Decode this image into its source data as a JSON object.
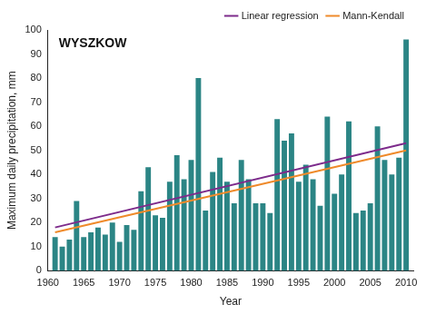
{
  "chart_data": {
    "type": "bar",
    "title": "WYSZKOW",
    "x_label": "Year",
    "y_label": "Maximum daily precipitation, mm",
    "x": [
      1961,
      1962,
      1963,
      1964,
      1965,
      1966,
      1967,
      1968,
      1969,
      1970,
      1971,
      1972,
      1973,
      1974,
      1975,
      1976,
      1977,
      1978,
      1979,
      1980,
      1981,
      1982,
      1983,
      1984,
      1985,
      1986,
      1987,
      1988,
      1989,
      1990,
      1991,
      1992,
      1993,
      1994,
      1995,
      1996,
      1997,
      1998,
      1999,
      2000,
      2001,
      2002,
      2003,
      2004,
      2005,
      2006,
      2007,
      2008,
      2009,
      2010
    ],
    "series": [
      {
        "type": "bar",
        "color": "#2b8585",
        "values": [
          14,
          10,
          13,
          29,
          14,
          16,
          18,
          15,
          20,
          12,
          19,
          17,
          33,
          43,
          23,
          22,
          37,
          48,
          38,
          46,
          80,
          25,
          41,
          47,
          37,
          28,
          46,
          38,
          28,
          28,
          24,
          63,
          54,
          57,
          37,
          44,
          38,
          27,
          64,
          32,
          40,
          62,
          24,
          25,
          28,
          60,
          46,
          40,
          47,
          96
        ]
      },
      {
        "name": "Linear regression",
        "type": "line",
        "color": "#7d2b8b",
        "x": [
          1961,
          2010
        ],
        "values": [
          18,
          53
        ]
      },
      {
        "name": "Mann-Kendall",
        "type": "line",
        "color": "#ef8a2a",
        "x": [
          1961,
          2010
        ],
        "values": [
          16,
          50
        ]
      }
    ],
    "xlim": [
      1960,
      2011
    ],
    "xticks": [
      1960,
      1965,
      1970,
      1975,
      1980,
      1985,
      1990,
      1995,
      2000,
      2005,
      2010
    ],
    "ylim": [
      0,
      100
    ],
    "yticks": [
      0,
      10,
      20,
      30,
      40,
      50,
      60,
      70,
      80,
      90,
      100
    ],
    "grid": false,
    "legend": "top right"
  }
}
